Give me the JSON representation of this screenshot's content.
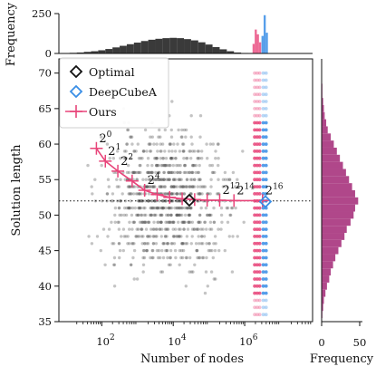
{
  "chart_data": {
    "type": "scatter",
    "xscale": "log",
    "xlabel": "Number of nodes",
    "ylabel": "Solution length",
    "xlim_log10": [
      0.8,
      7.9
    ],
    "ylim": [
      35,
      72
    ],
    "x_tick_labels": [
      {
        "base": "10",
        "exp": "2",
        "log10": 2
      },
      {
        "base": "10",
        "exp": "4",
        "log10": 4
      },
      {
        "base": "10",
        "exp": "6",
        "log10": 6
      }
    ],
    "y_ticks": [
      35,
      40,
      45,
      50,
      55,
      60,
      65,
      70
    ],
    "optimal_reference_line": 52,
    "legend_position": "upper-left",
    "legend": [
      {
        "label": "Optimal",
        "marker": "diamond",
        "color": "#111111"
      },
      {
        "label": "DeepCubeA",
        "marker": "diamond",
        "color": "#3a8ee6"
      },
      {
        "label": "Ours",
        "marker": "plus-line",
        "color": "#e8457a"
      }
    ],
    "series": [
      {
        "name": "Ours",
        "color": "#e8457a",
        "points": [
          {
            "log10_nodes": 1.85,
            "length": 59.4,
            "label_base": "2",
            "label_exp": "0"
          },
          {
            "log10_nodes": 2.1,
            "length": 57.6,
            "label_base": "2",
            "label_exp": "1"
          },
          {
            "log10_nodes": 2.45,
            "length": 56.2,
            "label_base": "2",
            "label_exp": "2"
          },
          {
            "log10_nodes": 2.85,
            "length": 54.8,
            "label_base": "",
            "label_exp": ""
          },
          {
            "log10_nodes": 3.2,
            "length": 53.5,
            "label_base": "2",
            "label_exp": "4"
          },
          {
            "log10_nodes": 3.55,
            "length": 52.9,
            "label_base": "",
            "label_exp": ""
          },
          {
            "log10_nodes": 3.9,
            "length": 52.5,
            "label_base": "",
            "label_exp": ""
          },
          {
            "log10_nodes": 4.25,
            "length": 52.3,
            "label_base": "",
            "label_exp": ""
          },
          {
            "log10_nodes": 4.6,
            "length": 52.2,
            "label_base": "",
            "label_exp": ""
          },
          {
            "log10_nodes": 4.95,
            "length": 52.1,
            "label_base": "",
            "label_exp": ""
          },
          {
            "log10_nodes": 5.3,
            "length": 52.1,
            "label_base": "2",
            "label_exp": "12"
          },
          {
            "log10_nodes": 5.7,
            "length": 52.05,
            "label_base": "2",
            "label_exp": "14"
          },
          {
            "log10_nodes": 6.5,
            "length": 52.05,
            "label_base": "2",
            "label_exp": "16"
          }
        ]
      },
      {
        "name": "Optimal",
        "color": "#111111",
        "point": {
          "log10_nodes": 4.45,
          "length": 52.1
        }
      },
      {
        "name": "DeepCubeA",
        "color": "#3a8ee6",
        "point": {
          "log10_nodes": 6.58,
          "length": 51.9
        }
      }
    ],
    "top_histogram": {
      "ylabel": "Frequency",
      "ylim": [
        0,
        250
      ],
      "y_ticks": [
        0,
        250
      ],
      "gray_bins": [
        {
          "log10_nodes": 1.0,
          "count": 2
        },
        {
          "log10_nodes": 1.2,
          "count": 4
        },
        {
          "log10_nodes": 1.4,
          "count": 6
        },
        {
          "log10_nodes": 1.6,
          "count": 10
        },
        {
          "log10_nodes": 1.8,
          "count": 14
        },
        {
          "log10_nodes": 2.0,
          "count": 20
        },
        {
          "log10_nodes": 2.2,
          "count": 28
        },
        {
          "log10_nodes": 2.4,
          "count": 38
        },
        {
          "log10_nodes": 2.6,
          "count": 48
        },
        {
          "log10_nodes": 2.8,
          "count": 58
        },
        {
          "log10_nodes": 3.0,
          "count": 68
        },
        {
          "log10_nodes": 3.2,
          "count": 78
        },
        {
          "log10_nodes": 3.4,
          "count": 86
        },
        {
          "log10_nodes": 3.6,
          "count": 92
        },
        {
          "log10_nodes": 3.8,
          "count": 96
        },
        {
          "log10_nodes": 4.0,
          "count": 98
        },
        {
          "log10_nodes": 4.2,
          "count": 96
        },
        {
          "log10_nodes": 4.4,
          "count": 90
        },
        {
          "log10_nodes": 4.6,
          "count": 82
        },
        {
          "log10_nodes": 4.8,
          "count": 70
        },
        {
          "log10_nodes": 5.0,
          "count": 56
        },
        {
          "log10_nodes": 5.2,
          "count": 40
        },
        {
          "log10_nodes": 5.4,
          "count": 26
        },
        {
          "log10_nodes": 5.6,
          "count": 14
        },
        {
          "log10_nodes": 5.8,
          "count": 6
        },
        {
          "log10_nodes": 6.0,
          "count": 3
        }
      ],
      "pink_bins": [
        {
          "log10_nodes": 6.25,
          "count": 60
        },
        {
          "log10_nodes": 6.31,
          "count": 150
        },
        {
          "log10_nodes": 6.37,
          "count": 120
        },
        {
          "log10_nodes": 6.43,
          "count": 70
        }
      ],
      "blue_bins": [
        {
          "log10_nodes": 6.5,
          "count": 110
        },
        {
          "log10_nodes": 6.56,
          "count": 240
        },
        {
          "log10_nodes": 6.62,
          "count": 130
        }
      ]
    },
    "right_histogram": {
      "xlabel": "Frequency",
      "xlim": [
        0,
        50
      ],
      "x_ticks": [
        0,
        50
      ],
      "color": "#b0478a",
      "bins": [
        {
          "length": 36,
          "count": 1
        },
        {
          "length": 37,
          "count": 2
        },
        {
          "length": 38,
          "count": 3
        },
        {
          "length": 39,
          "count": 5
        },
        {
          "length": 40,
          "count": 7
        },
        {
          "length": 41,
          "count": 10
        },
        {
          "length": 42,
          "count": 12
        },
        {
          "length": 43,
          "count": 15
        },
        {
          "length": 44,
          "count": 18
        },
        {
          "length": 45,
          "count": 22
        },
        {
          "length": 46,
          "count": 26
        },
        {
          "length": 47,
          "count": 30
        },
        {
          "length": 48,
          "count": 33
        },
        {
          "length": 49,
          "count": 38
        },
        {
          "length": 50,
          "count": 42
        },
        {
          "length": 51,
          "count": 44
        },
        {
          "length": 52,
          "count": 48
        },
        {
          "length": 53,
          "count": 44
        },
        {
          "length": 54,
          "count": 40
        },
        {
          "length": 55,
          "count": 36
        },
        {
          "length": 56,
          "count": 32
        },
        {
          "length": 57,
          "count": 28
        },
        {
          "length": 58,
          "count": 24
        },
        {
          "length": 59,
          "count": 20
        },
        {
          "length": 60,
          "count": 16
        },
        {
          "length": 61,
          "count": 12
        },
        {
          "length": 62,
          "count": 8
        },
        {
          "length": 63,
          "count": 6
        },
        {
          "length": 64,
          "count": 4
        },
        {
          "length": 65,
          "count": 3
        },
        {
          "length": 66,
          "count": 2
        },
        {
          "length": 67,
          "count": 1
        },
        {
          "length": 68,
          "count": 1
        }
      ]
    },
    "colors": {
      "gray_points": "#555555",
      "pink_column": "#e8457a",
      "blue_column": "#3a8ee6",
      "axis": "#111111"
    }
  }
}
